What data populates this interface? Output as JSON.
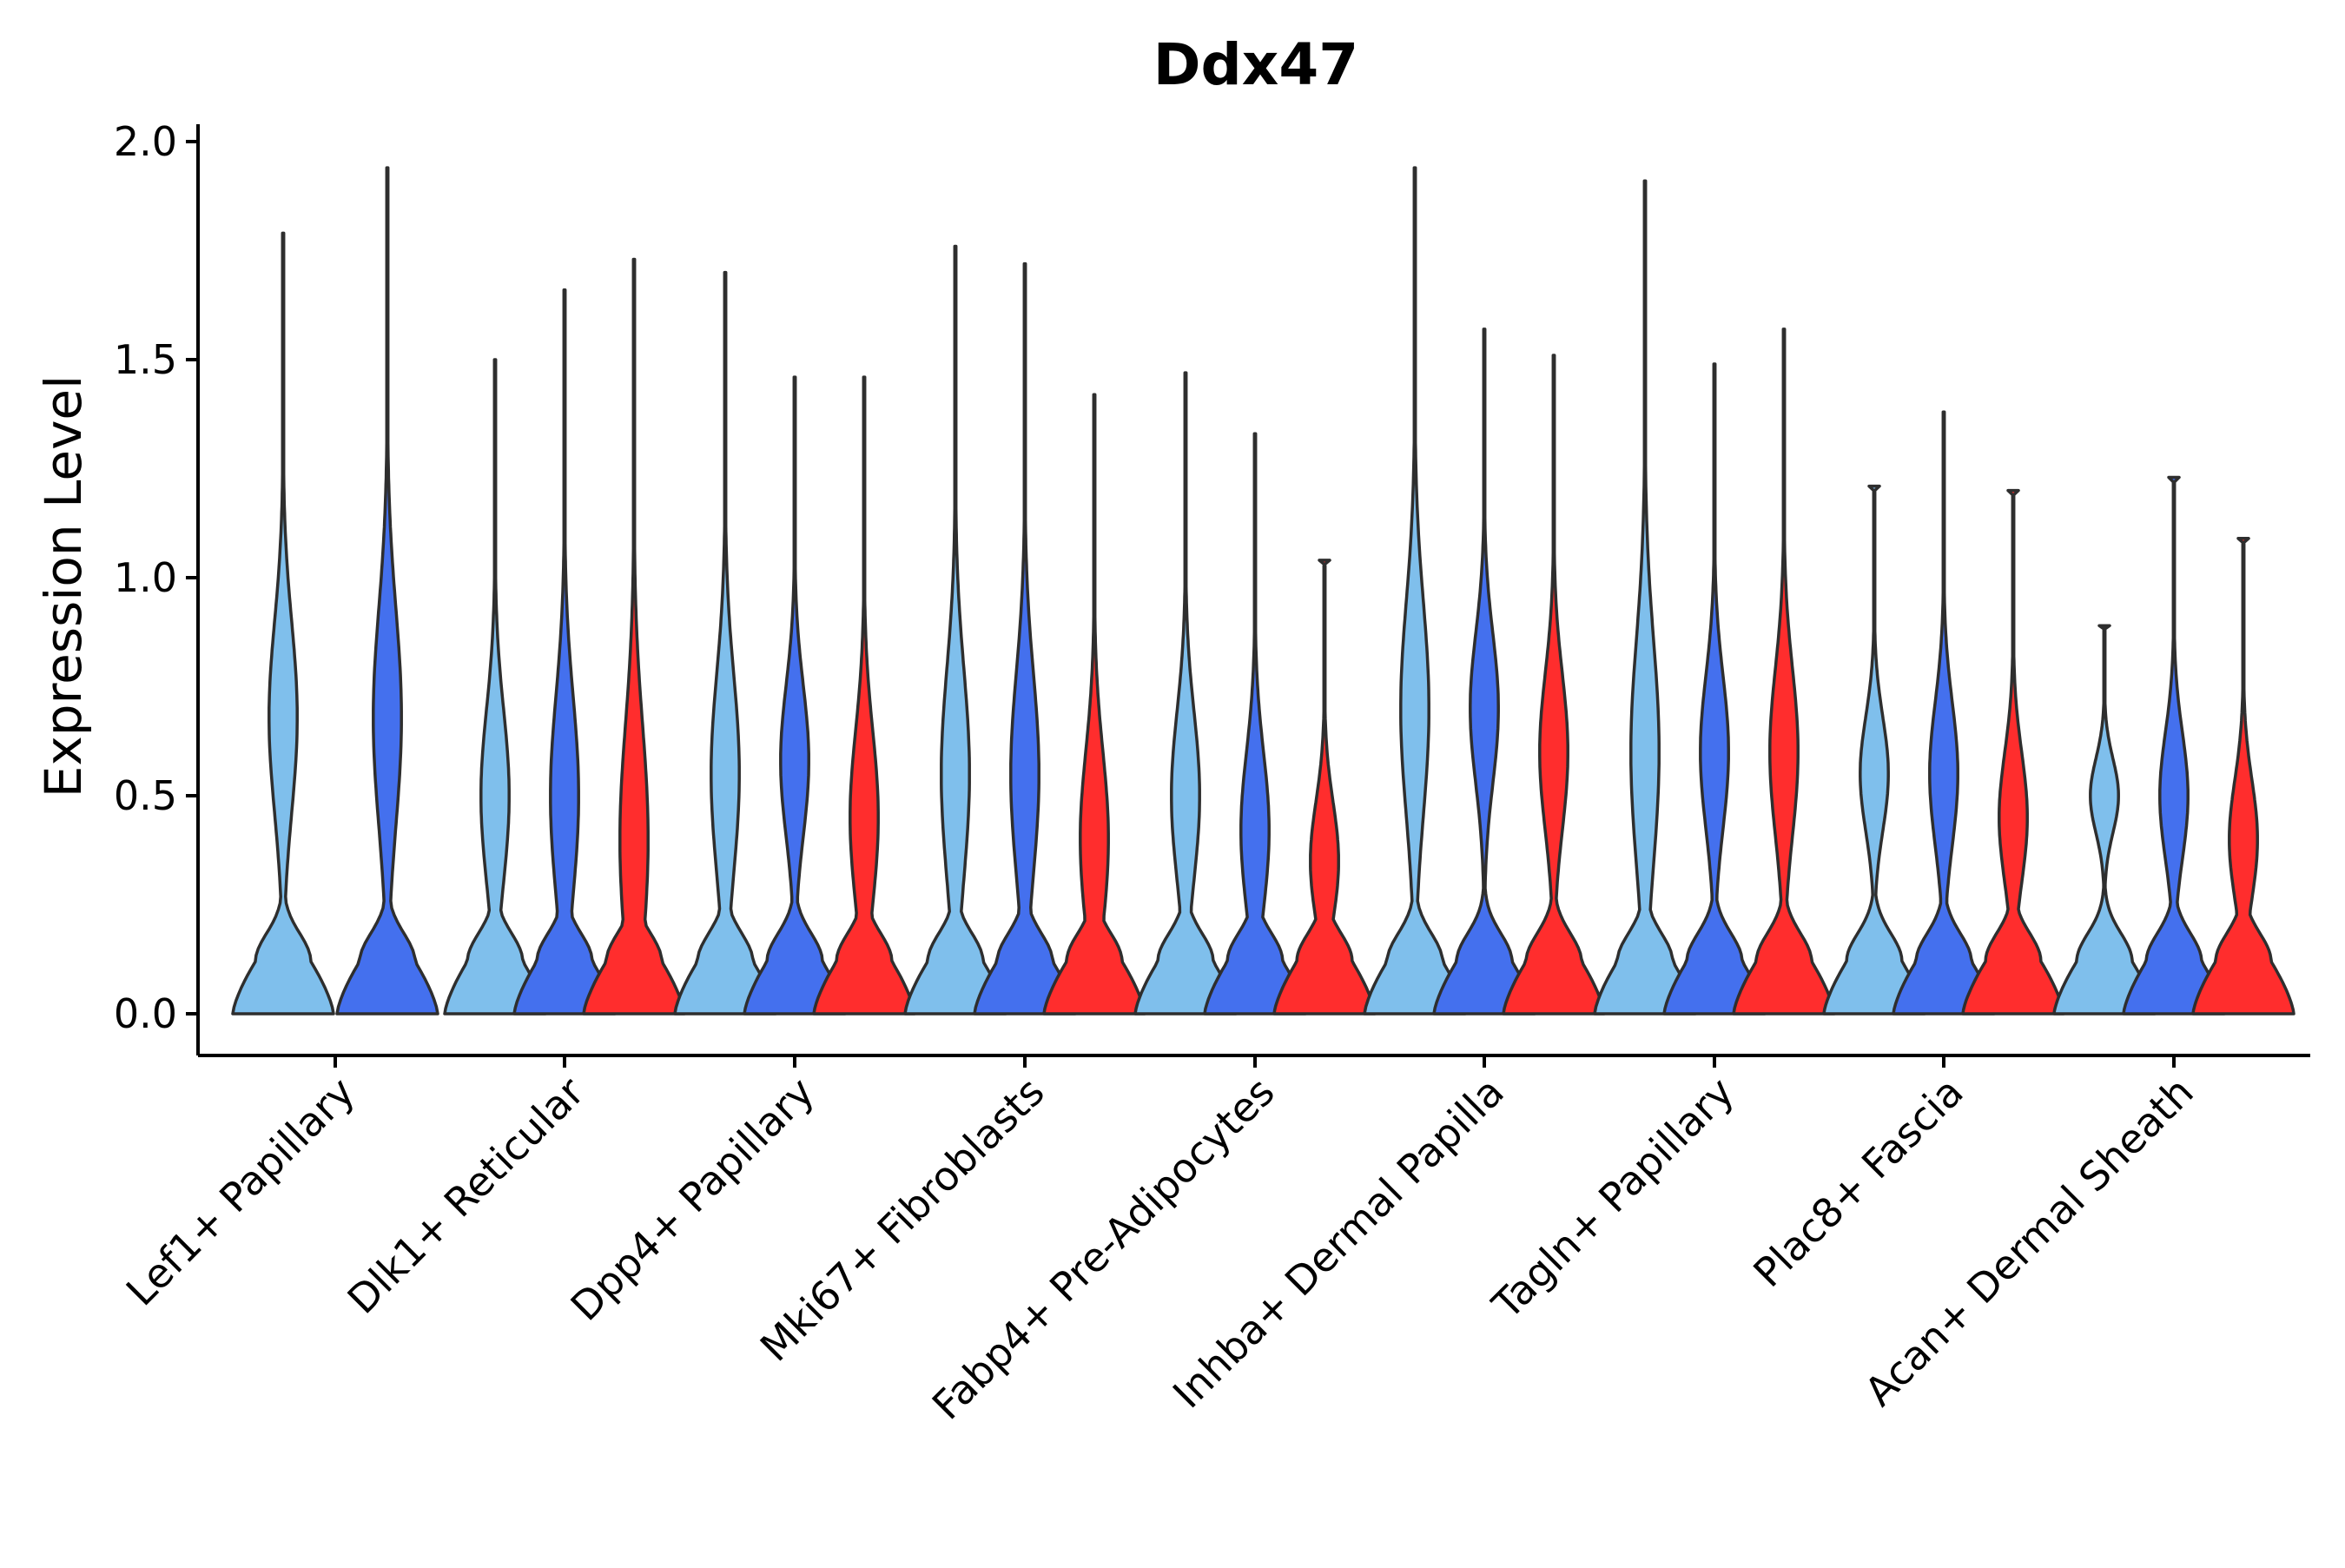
{
  "chart_data": {
    "type": "violin",
    "title": "Ddx47",
    "xlabel": "",
    "ylabel": "Expression Level",
    "ylim": [
      -0.1,
      2.05
    ],
    "yticks": [
      "0.0",
      "0.5",
      "1.0",
      "1.5",
      "2.0"
    ],
    "ytick_values": [
      0,
      0.5,
      1.0,
      1.5,
      2.0
    ],
    "categories": [
      "Lef1+ Papillary",
      "Dlk1+ Reticular",
      "Dpp4+ Papillary",
      "Mki67+ Fibroblasts",
      "Fabp4+ Pre-Adipocytes",
      "Inhba+ Dermal Papilla",
      "Tagln+ Papillary",
      "Plac8+ Fascia",
      "Acan+ Dermal Sheath"
    ],
    "series": [
      {
        "name": "light blue",
        "color": "#7fbfec",
        "values": [
          {
            "category": "Lef1+ Papillary",
            "max": 1.79,
            "mode": 0.68
          },
          {
            "category": "Dlk1+ Reticular",
            "max": 1.5,
            "mode": 0.5
          },
          {
            "category": "Dpp4+ Papillary",
            "max": 1.7,
            "mode": 0.55
          },
          {
            "category": "Mki67+ Fibroblasts",
            "max": 1.76,
            "mode": 0.55
          },
          {
            "category": "Fabp4+ Pre-Adipocytes",
            "max": 1.47,
            "mode": 0.5
          },
          {
            "category": "Inhba+ Dermal Papilla",
            "max": 1.94,
            "mode": 0.7
          },
          {
            "category": "Tagln+ Papillary",
            "max": 1.91,
            "mode": 0.6
          },
          {
            "category": "Plac8+ Fascia",
            "max": 1.21,
            "mode": 0.55
          },
          {
            "category": "Acan+ Dermal Sheath",
            "max": 0.89,
            "mode": 0.5
          }
        ]
      },
      {
        "name": "royal blue",
        "color": "#4470ee",
        "values": [
          {
            "category": "Lef1+ Papillary",
            "max": 1.94,
            "mode": 0.68
          },
          {
            "category": "Dlk1+ Reticular",
            "max": 1.66,
            "mode": 0.5
          },
          {
            "category": "Dpp4+ Papillary",
            "max": 1.46,
            "mode": 0.58
          },
          {
            "category": "Mki67+ Fibroblasts",
            "max": 1.72,
            "mode": 0.55
          },
          {
            "category": "Fabp4+ Pre-Adipocytes",
            "max": 1.33,
            "mode": 0.42
          },
          {
            "category": "Inhba+ Dermal Papilla",
            "max": 1.57,
            "mode": 0.7
          },
          {
            "category": "Tagln+ Papillary",
            "max": 1.49,
            "mode": 0.6
          },
          {
            "category": "Plac8+ Fascia",
            "max": 1.38,
            "mode": 0.55
          },
          {
            "category": "Acan+ Dermal Sheath",
            "max": 1.23,
            "mode": 0.5
          }
        ]
      },
      {
        "name": "red",
        "color": "#ff2d2d",
        "values": [
          {
            "category": "Dlk1+ Reticular",
            "max": 1.73,
            "mode": 0.4
          },
          {
            "category": "Dpp4+ Papillary",
            "max": 1.46,
            "mode": 0.45
          },
          {
            "category": "Mki67+ Fibroblasts",
            "max": 1.42,
            "mode": 0.4
          },
          {
            "category": "Fabp4+ Pre-Adipocytes",
            "max": 1.04,
            "mode": 0.35
          },
          {
            "category": "Inhba+ Dermal Papilla",
            "max": 1.51,
            "mode": 0.6
          },
          {
            "category": "Tagln+ Papillary",
            "max": 1.57,
            "mode": 0.6
          },
          {
            "category": "Plac8+ Fascia",
            "max": 1.2,
            "mode": 0.45
          },
          {
            "category": "Acan+ Dermal Sheath",
            "max": 1.09,
            "mode": 0.4
          }
        ]
      }
    ]
  }
}
